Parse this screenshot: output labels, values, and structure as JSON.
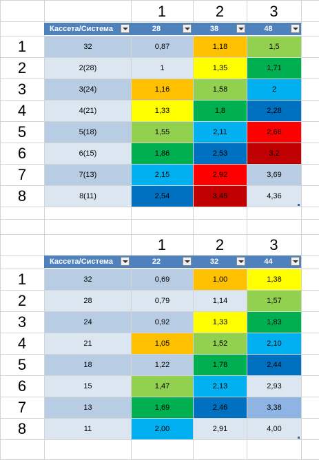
{
  "tables": [
    {
      "column_numbers": [
        "1",
        "2",
        "3"
      ],
      "row_numbers": [
        "1",
        "2",
        "3",
        "4",
        "5",
        "6",
        "7",
        "8"
      ],
      "headers": [
        "Кассета/Система",
        "28",
        "38",
        "48"
      ],
      "rows": [
        [
          "32",
          "0,87",
          "1,18",
          "1,5"
        ],
        [
          "2(28)",
          "1",
          "1,35",
          "1,71"
        ],
        [
          "3(24)",
          "1,16",
          "1,58",
          "2"
        ],
        [
          "4(21)",
          "1,33",
          "1,8",
          "2,28"
        ],
        [
          "5(18)",
          "1,55",
          "2,11",
          "2,66"
        ],
        [
          "6(15)",
          "1,86",
          "2,53",
          "3,2"
        ],
        [
          "7(13)",
          "2,15",
          "2,92",
          "3,69"
        ],
        [
          "8(11)",
          "2,54",
          "3,45",
          "4,36"
        ]
      ],
      "cell_colors": [
        [
          null,
          null,
          "#ffc000",
          "#92d050"
        ],
        [
          null,
          null,
          "#ffff00",
          "#00b050"
        ],
        [
          null,
          "#ffc000",
          "#92d050",
          "#00b0f0"
        ],
        [
          null,
          "#ffff00",
          "#00b050",
          "#0070c0"
        ],
        [
          null,
          "#92d050",
          "#00b0f0",
          "#ff0000"
        ],
        [
          null,
          "#00b050",
          "#0070c0",
          "#c00000"
        ],
        [
          null,
          "#00b0f0",
          "#ff0000",
          null
        ],
        [
          null,
          "#0070c0",
          "#c00000",
          null
        ]
      ]
    },
    {
      "column_numbers": [
        "1",
        "2",
        "3"
      ],
      "row_numbers": [
        "1",
        "2",
        "3",
        "4",
        "5",
        "6",
        "7",
        "8"
      ],
      "headers": [
        "Кассета/Система",
        "22",
        "32",
        "44"
      ],
      "rows": [
        [
          "32",
          "0,69",
          "1,00",
          "1,38"
        ],
        [
          "28",
          "0,79",
          "1,14",
          "1,57"
        ],
        [
          "24",
          "0,92",
          "1,33",
          "1,83"
        ],
        [
          "21",
          "1,05",
          "1,52",
          "2,10"
        ],
        [
          "18",
          "1,22",
          "1,78",
          "2,44"
        ],
        [
          "15",
          "1,47",
          "2,13",
          "2,93"
        ],
        [
          "13",
          "1,69",
          "2,46",
          "3,38"
        ],
        [
          "11",
          "2,00",
          "2,91",
          "4,00"
        ]
      ],
      "cell_colors": [
        [
          null,
          null,
          "#ffc000",
          "#ffff00"
        ],
        [
          null,
          null,
          null,
          "#92d050"
        ],
        [
          null,
          null,
          "#ffff00",
          "#00b050"
        ],
        [
          null,
          "#ffc000",
          "#92d050",
          "#00b0f0"
        ],
        [
          null,
          null,
          "#00b050",
          "#0070c0"
        ],
        [
          null,
          "#92d050",
          "#00b0f0",
          null
        ],
        [
          null,
          "#00b050",
          "#0070c0",
          "#8db4e2"
        ],
        [
          null,
          "#00b0f0",
          null,
          null
        ]
      ]
    }
  ],
  "colors": {
    "header_bg": "#4f81bd",
    "band_dark": "#b8cce4",
    "band_light": "#dce6f1",
    "gridline": "#d4d4d4"
  }
}
